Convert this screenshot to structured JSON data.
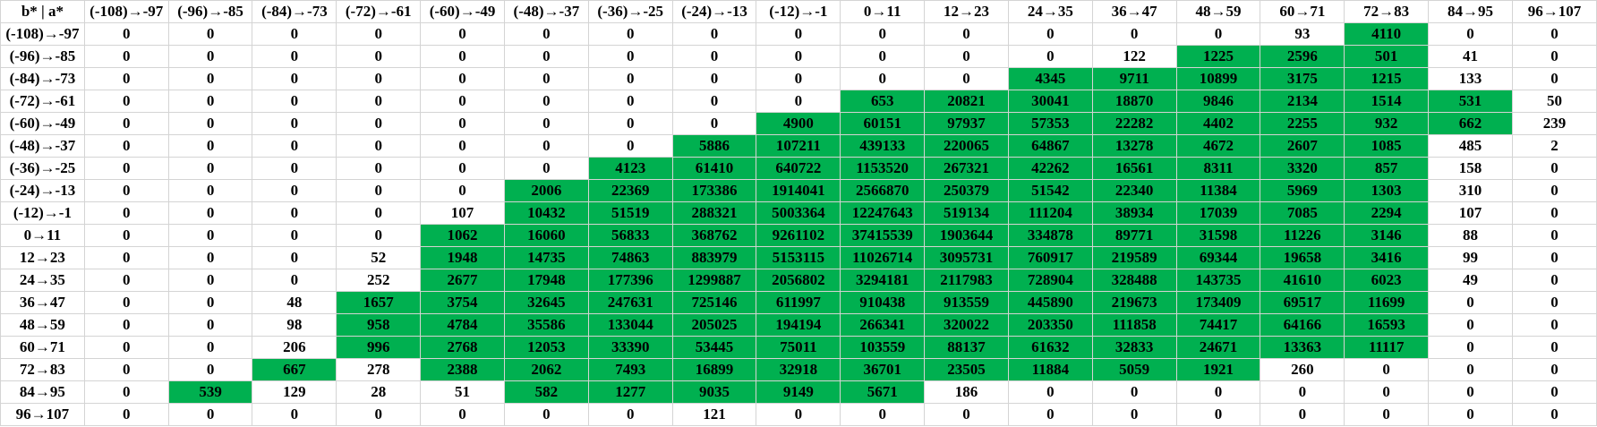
{
  "table": {
    "corner": "b* | a*",
    "columns": [
      "(-108)→-97",
      "(-96)→-85",
      "(-84)→-73",
      "(-72)→-61",
      "(-60)→-49",
      "(-48)→-37",
      "(-36)→-25",
      "(-24)→-13",
      "(-12)→-1",
      "0→11",
      "12→23",
      "24→35",
      "36→47",
      "48→59",
      "60→71",
      "72→83",
      "84→95",
      "96→107"
    ],
    "highlight_color": "#00b050",
    "rows": [
      {
        "label": "(-108)→-97",
        "values": [
          0,
          0,
          0,
          0,
          0,
          0,
          0,
          0,
          0,
          0,
          0,
          0,
          0,
          0,
          93,
          4110,
          0,
          0
        ],
        "highlighted": [
          [
            15,
            15
          ]
        ]
      },
      {
        "label": "(-96)→-85",
        "values": [
          0,
          0,
          0,
          0,
          0,
          0,
          0,
          0,
          0,
          0,
          0,
          0,
          122,
          1225,
          2596,
          501,
          41,
          0
        ],
        "highlighted": [
          [
            13,
            15
          ]
        ]
      },
      {
        "label": "(-84)→-73",
        "values": [
          0,
          0,
          0,
          0,
          0,
          0,
          0,
          0,
          0,
          0,
          0,
          4345,
          9711,
          10899,
          3175,
          1215,
          133,
          0
        ],
        "highlighted": [
          [
            11,
            15
          ]
        ]
      },
      {
        "label": "(-72)→-61",
        "values": [
          0,
          0,
          0,
          0,
          0,
          0,
          0,
          0,
          0,
          653,
          20821,
          30041,
          18870,
          9846,
          2134,
          1514,
          531,
          50
        ],
        "highlighted": [
          [
            9,
            16
          ]
        ]
      },
      {
        "label": "(-60)→-49",
        "values": [
          0,
          0,
          0,
          0,
          0,
          0,
          0,
          0,
          4900,
          60151,
          97937,
          57353,
          22282,
          4402,
          2255,
          932,
          662,
          239
        ],
        "highlighted": [
          [
            8,
            16
          ]
        ]
      },
      {
        "label": "(-48)→-37",
        "values": [
          0,
          0,
          0,
          0,
          0,
          0,
          0,
          5886,
          107211,
          439133,
          220065,
          64867,
          13278,
          4672,
          2607,
          1085,
          485,
          2
        ],
        "highlighted": [
          [
            7,
            15
          ]
        ]
      },
      {
        "label": "(-36)→-25",
        "values": [
          0,
          0,
          0,
          0,
          0,
          0,
          4123,
          61410,
          640722,
          1153520,
          267321,
          42262,
          16561,
          8311,
          3320,
          857,
          158,
          0
        ],
        "highlighted": [
          [
            6,
            15
          ]
        ]
      },
      {
        "label": "(-24)→-13",
        "values": [
          0,
          0,
          0,
          0,
          0,
          2006,
          22369,
          173386,
          1914041,
          2566870,
          250379,
          51542,
          22340,
          11384,
          5969,
          1303,
          310,
          0
        ],
        "highlighted": [
          [
            5,
            15
          ]
        ]
      },
      {
        "label": "(-12)→-1",
        "values": [
          0,
          0,
          0,
          0,
          107,
          10432,
          51519,
          288321,
          5003364,
          12247643,
          519134,
          111204,
          38934,
          17039,
          7085,
          2294,
          107,
          0
        ],
        "highlighted": [
          [
            5,
            15
          ]
        ]
      },
      {
        "label": "0→11",
        "values": [
          0,
          0,
          0,
          0,
          1062,
          16060,
          56833,
          368762,
          9261102,
          37415539,
          1903644,
          334878,
          89771,
          31598,
          11226,
          3146,
          88,
          0
        ],
        "highlighted": [
          [
            4,
            15
          ]
        ]
      },
      {
        "label": "12→23",
        "values": [
          0,
          0,
          0,
          52,
          1948,
          14735,
          74863,
          883979,
          5153115,
          11026714,
          3095731,
          760917,
          219589,
          69344,
          19658,
          3416,
          99,
          0
        ],
        "highlighted": [
          [
            4,
            15
          ]
        ]
      },
      {
        "label": "24→35",
        "values": [
          0,
          0,
          0,
          252,
          2677,
          17948,
          177396,
          1299887,
          2056802,
          3294181,
          2117983,
          728904,
          328488,
          143735,
          41610,
          6023,
          49,
          0
        ],
        "highlighted": [
          [
            4,
            15
          ]
        ]
      },
      {
        "label": "36→47",
        "values": [
          0,
          0,
          48,
          1657,
          3754,
          32645,
          247631,
          725146,
          611997,
          910438,
          913559,
          445890,
          219673,
          173409,
          69517,
          11699,
          0,
          0
        ],
        "highlighted": [
          [
            3,
            15
          ]
        ]
      },
      {
        "label": "48→59",
        "values": [
          0,
          0,
          98,
          958,
          4784,
          35586,
          133044,
          205025,
          194194,
          266341,
          320022,
          203350,
          111858,
          74417,
          64166,
          16593,
          0,
          0
        ],
        "highlighted": [
          [
            3,
            15
          ]
        ]
      },
      {
        "label": "60→71",
        "values": [
          0,
          0,
          206,
          996,
          2768,
          12053,
          33390,
          53445,
          75011,
          103559,
          88137,
          61632,
          32833,
          24671,
          13363,
          11117,
          0,
          0
        ],
        "highlighted": [
          [
            3,
            15
          ]
        ]
      },
      {
        "label": "72→83",
        "values": [
          0,
          0,
          667,
          278,
          2388,
          2062,
          7493,
          16899,
          32918,
          36701,
          23505,
          11884,
          5059,
          1921,
          260,
          0,
          0,
          0
        ],
        "highlighted": [
          [
            2,
            2
          ],
          [
            4,
            13
          ]
        ]
      },
      {
        "label": "84→95",
        "values": [
          0,
          539,
          129,
          28,
          51,
          582,
          1277,
          9035,
          9149,
          5671,
          186,
          0,
          0,
          0,
          0,
          0,
          0,
          0
        ],
        "highlighted": [
          [
            1,
            1
          ],
          [
            5,
            9
          ]
        ]
      },
      {
        "label": "96→107",
        "values": [
          0,
          0,
          0,
          0,
          0,
          0,
          0,
          121,
          0,
          0,
          0,
          0,
          0,
          0,
          0,
          0,
          0,
          0
        ],
        "highlighted": []
      }
    ]
  }
}
